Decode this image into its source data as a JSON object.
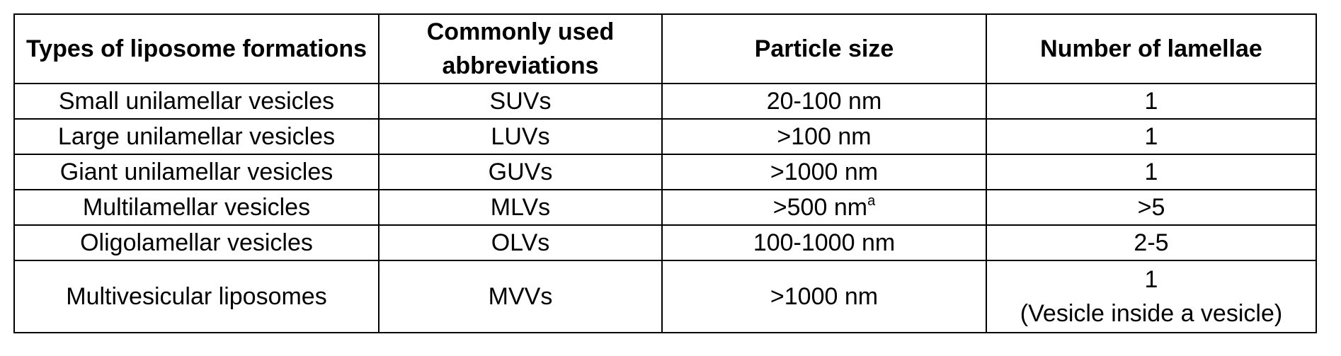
{
  "table": {
    "headers": [
      "Types of liposome formations",
      "Commonly used abbreviations",
      "Particle size",
      "Number of lamellae"
    ],
    "rows": [
      {
        "type": "Small unilamellar vesicles",
        "abbreviation": "SUVs",
        "particle_size": "20-100 nm",
        "particle_size_note": "",
        "lamellae": "1",
        "lamellae_note": ""
      },
      {
        "type": "Large unilamellar vesicles",
        "abbreviation": "LUVs",
        "particle_size": ">100 nm",
        "particle_size_note": "",
        "lamellae": "1",
        "lamellae_note": ""
      },
      {
        "type": "Giant unilamellar vesicles",
        "abbreviation": "GUVs",
        "particle_size": ">1000 nm",
        "particle_size_note": "",
        "lamellae": "1",
        "lamellae_note": ""
      },
      {
        "type": "Multilamellar vesicles",
        "abbreviation": "MLVs",
        "particle_size": ">500 nm",
        "particle_size_note": "a",
        "lamellae": ">5",
        "lamellae_note": ""
      },
      {
        "type": "Oligolamellar vesicles",
        "abbreviation": "OLVs",
        "particle_size": "100-1000 nm",
        "particle_size_note": "",
        "lamellae": "2-5",
        "lamellae_note": ""
      },
      {
        "type": "Multivesicular liposomes",
        "abbreviation": "MVVs",
        "particle_size": ">1000 nm",
        "particle_size_note": "",
        "lamellae": "1",
        "lamellae_note": "(Vesicle inside a vesicle)"
      }
    ]
  }
}
